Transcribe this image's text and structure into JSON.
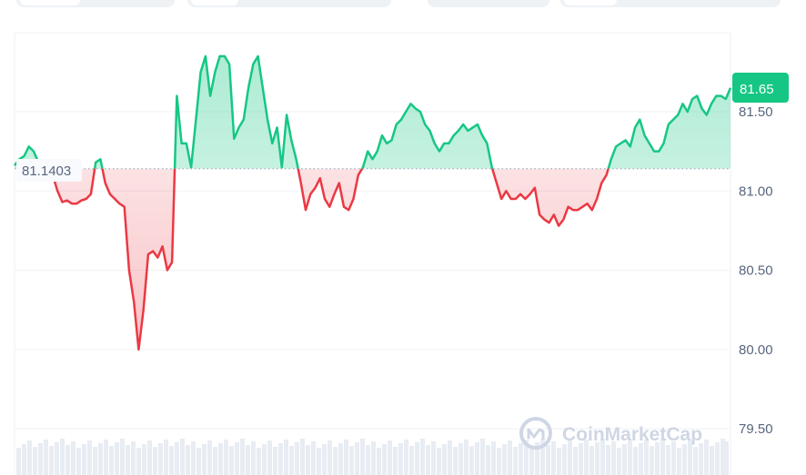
{
  "chart_data": {
    "type": "line",
    "reference_value": "81.1403",
    "last_value": "81.65",
    "ylim": [
      79.5,
      81.95
    ],
    "y_ticks": [
      "81.50",
      "81.00",
      "80.50",
      "80.00",
      "79.50"
    ],
    "y": [
      81.16,
      81.2,
      81.22,
      81.28,
      81.25,
      81.18,
      81.15,
      81.15,
      81.1,
      81.0,
      80.93,
      80.94,
      80.92,
      80.92,
      80.94,
      80.95,
      80.98,
      81.18,
      81.2,
      81.05,
      80.98,
      80.95,
      80.92,
      80.9,
      80.5,
      80.3,
      80.0,
      80.25,
      80.6,
      80.62,
      80.58,
      80.65,
      80.5,
      80.55,
      81.6,
      81.3,
      81.3,
      81.15,
      81.45,
      81.75,
      81.85,
      81.6,
      81.75,
      81.85,
      81.85,
      81.8,
      81.33,
      81.4,
      81.45,
      81.65,
      81.8,
      81.85,
      81.65,
      81.45,
      81.3,
      81.4,
      81.15,
      81.48,
      81.32,
      81.2,
      81.05,
      80.88,
      80.98,
      81.02,
      81.08,
      80.95,
      80.9,
      80.98,
      81.05,
      80.9,
      80.88,
      80.95,
      81.1,
      81.15,
      81.25,
      81.2,
      81.25,
      81.35,
      81.3,
      81.32,
      81.42,
      81.45,
      81.5,
      81.55,
      81.52,
      81.5,
      81.42,
      81.38,
      81.3,
      81.25,
      81.3,
      81.3,
      81.35,
      81.38,
      81.42,
      81.38,
      81.4,
      81.42,
      81.35,
      81.3,
      81.15,
      81.05,
      80.95,
      81.0,
      80.95,
      80.95,
      80.98,
      80.95,
      80.98,
      81.02,
      80.85,
      80.82,
      80.8,
      80.85,
      80.78,
      80.82,
      80.9,
      80.88,
      80.88,
      80.9,
      80.92,
      80.88,
      80.95,
      81.05,
      81.1,
      81.2,
      81.28,
      81.3,
      81.32,
      81.28,
      81.4,
      81.45,
      81.35,
      81.3,
      81.25,
      81.25,
      81.3,
      81.42,
      81.45,
      81.48,
      81.55,
      81.5,
      81.58,
      81.6,
      81.52,
      81.48,
      81.55,
      81.6,
      81.6,
      81.58,
      81.65
    ]
  },
  "brand": {
    "name": "CoinMarketCap"
  },
  "colors": {
    "up": "#16c784",
    "down": "#ea3943",
    "up_fill_top": "#16c784",
    "down_fill_top": "#ea3943",
    "grid": "#eff2f5",
    "frame": "#cfd6e4",
    "reference_line": "#a6b0c3",
    "label_box_bg": "#f8fafd",
    "tab_bg": "#eff2f5",
    "watermark": "#cfd6e4",
    "volume": "#e8ecf3"
  },
  "icons": {
    "brand_logo": "coinmarketcap-logo-icon"
  }
}
